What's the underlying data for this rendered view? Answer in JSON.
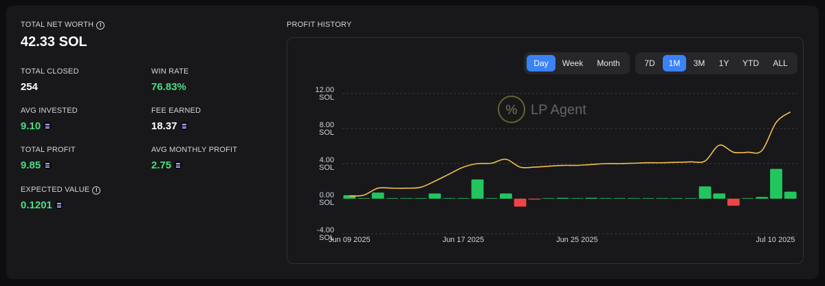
{
  "stats": {
    "net_worth_label": "TOTAL NET WORTH",
    "net_worth_value": "42.33 SOL",
    "total_closed_label": "TOTAL CLOSED",
    "total_closed_value": "254",
    "win_rate_label": "WIN RATE",
    "win_rate_value": "76.83%",
    "avg_invested_label": "AVG INVESTED",
    "avg_invested_value": "9.10",
    "fee_earned_label": "FEE EARNED",
    "fee_earned_value": "18.37",
    "total_profit_label": "TOTAL PROFIT",
    "total_profit_value": "9.85",
    "avg_monthly_profit_label": "AVG MONTHLY PROFIT",
    "avg_monthly_profit_value": "2.75",
    "expected_value_label": "EXPECTED VALUE",
    "expected_value_value": "0.1201",
    "info_icon_glyph": "i"
  },
  "profit_history": {
    "title": "PROFIT HISTORY",
    "watermark": "LP Agent",
    "watermark_glyph": "%",
    "interval_buttons": [
      {
        "label": "Day",
        "active": true
      },
      {
        "label": "Week",
        "active": false
      },
      {
        "label": "Month",
        "active": false
      }
    ],
    "range_buttons": [
      {
        "label": "7D",
        "active": false
      },
      {
        "label": "1M",
        "active": true
      },
      {
        "label": "3M",
        "active": false
      },
      {
        "label": "1Y",
        "active": false
      },
      {
        "label": "YTD",
        "active": false
      },
      {
        "label": "ALL",
        "active": false
      }
    ]
  },
  "colors": {
    "positive": "#22c55e",
    "negative": "#ef4444",
    "line": "#f5c04f",
    "accent": "#3b82f6"
  },
  "chart_data": {
    "type": "bar",
    "ylim": [
      -4,
      12
    ],
    "y_ticks": [
      {
        "value": 12,
        "line1": "12.00",
        "line2": "SOL"
      },
      {
        "value": 8,
        "line1": "8.00",
        "line2": "SOL"
      },
      {
        "value": 4,
        "line1": "4.00",
        "line2": "SOL"
      },
      {
        "value": 0,
        "line1": "0.00",
        "line2": "SOL"
      },
      {
        "value": -4,
        "line1": "-4.00",
        "line2": "SOL"
      }
    ],
    "x_tick_labels": [
      {
        "index": 0,
        "label": "Jun 09 2025"
      },
      {
        "index": 8,
        "label": "Jun 17 2025"
      },
      {
        "index": 16,
        "label": "Jun 25 2025"
      },
      {
        "index": 31,
        "label": "Jul 10 2025"
      }
    ],
    "series": [
      {
        "type": "bar",
        "values": [
          0.4,
          0.05,
          0.7,
          0.02,
          0.02,
          0.05,
          0.6,
          0.02,
          0.02,
          2.2,
          0.05,
          0.6,
          -0.9,
          -0.1,
          0.05,
          0.1,
          0.05,
          0.1,
          0.05,
          0.03,
          0.05,
          0.03,
          0.05,
          0.05,
          0.03,
          1.4,
          0.6,
          -0.8,
          0.03,
          0.2,
          3.4,
          0.8
        ]
      },
      {
        "type": "line",
        "values": [
          0.3,
          0.4,
          1.2,
          1.2,
          1.2,
          1.3,
          2.0,
          2.8,
          3.6,
          4.0,
          4.05,
          4.5,
          3.6,
          3.6,
          3.7,
          3.8,
          3.8,
          3.9,
          4.0,
          4.0,
          4.05,
          4.1,
          4.1,
          4.15,
          4.2,
          4.3,
          6.1,
          5.3,
          5.3,
          5.5,
          8.7,
          9.9
        ]
      }
    ]
  }
}
